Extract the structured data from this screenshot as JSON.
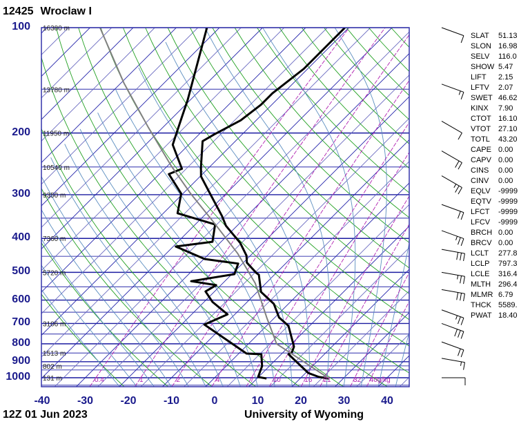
{
  "header": {
    "station_id": "12425",
    "station_name": "Wroclaw I"
  },
  "footer": {
    "time": "12Z 01 Jun 2023",
    "source": "University of Wyoming"
  },
  "chart_data": {
    "type": "line",
    "title": "12425 Wroclaw I",
    "xlabel": "Temperature (°C)",
    "ylabel": "Pressure (hPa)",
    "xlim": [
      -40,
      45
    ],
    "ylim": [
      1060,
      100
    ],
    "x_ticks": [
      "-40",
      "-30",
      "-20",
      "-10",
      "0",
      "10",
      "20",
      "30",
      "40"
    ],
    "y_ticks": [
      "100",
      "200",
      "300",
      "400",
      "500",
      "600",
      "700",
      "800",
      "900",
      "1000"
    ],
    "isobars": [
      100,
      150,
      200,
      250,
      300,
      350,
      400,
      450,
      500,
      550,
      600,
      650,
      700,
      750,
      800,
      850,
      900,
      925,
      950,
      1000,
      1050
    ],
    "height_labels": [
      {
        "p": 100,
        "text": "16380 m"
      },
      {
        "p": 150,
        "text": "13780 m"
      },
      {
        "p": 200,
        "text": "11950 m"
      },
      {
        "p": 250,
        "text": "10540 m"
      },
      {
        "p": 300,
        "text": "9350 m"
      },
      {
        "p": 400,
        "text": "7360 m"
      },
      {
        "p": 500,
        "text": "5720 m"
      },
      {
        "p": 700,
        "text": "3106 m"
      },
      {
        "p": 850,
        "text": "1513 m"
      },
      {
        "p": 925,
        "text": "802 m"
      },
      {
        "p": 1000,
        "text": "131 m"
      }
    ],
    "mixing_ratio_labels": [
      "0.4",
      "1",
      "2",
      "4",
      "7",
      "10",
      "16",
      "21",
      "32",
      "40g/kg"
    ],
    "mixing_ratios": [
      0.4,
      1,
      2,
      4,
      7,
      10,
      16,
      21,
      32,
      40
    ],
    "series": [
      {
        "name": "Temperature",
        "color": "#000000",
        "points": [
          [
            1005,
            26.7
          ],
          [
            995,
            24.0
          ],
          [
            969,
            20.6
          ],
          [
            857,
            11.7
          ],
          [
            845,
            12.0
          ],
          [
            815,
            11.2
          ],
          [
            711,
            5.1
          ],
          [
            673,
            1.0
          ],
          [
            615,
            -3.4
          ],
          [
            569,
            -9.1
          ],
          [
            508,
            -13.6
          ],
          [
            502,
            -14.6
          ],
          [
            469,
            -19.2
          ],
          [
            448,
            -20.9
          ],
          [
            412,
            -25.3
          ],
          [
            368,
            -32.6
          ],
          [
            345,
            -35.8
          ],
          [
            298,
            -43.7
          ],
          [
            266,
            -49.8
          ],
          [
            250,
            -52.0
          ],
          [
            211,
            -57.6
          ],
          [
            202,
            -56.5
          ],
          [
            184,
            -53.6
          ],
          [
            166,
            -52.5
          ],
          [
            154,
            -52.5
          ],
          [
            131,
            -50.9
          ],
          [
            100,
            -50.9
          ]
        ]
      },
      {
        "name": "Dewpoint",
        "color": "#000000",
        "points": [
          [
            1005,
            12.2
          ],
          [
            995,
            9.9
          ],
          [
            960,
            9.1
          ],
          [
            926,
            8.3
          ],
          [
            857,
            5.4
          ],
          [
            853,
            1.8
          ],
          [
            705,
            -14.7
          ],
          [
            659,
            -11.7
          ],
          [
            607,
            -18.1
          ],
          [
            567,
            -22.1
          ],
          [
            544,
            -21.1
          ],
          [
            530,
            -27.8
          ],
          [
            506,
            -19.4
          ],
          [
            472,
            -21.0
          ],
          [
            458,
            -29.8
          ],
          [
            422,
            -39.4
          ],
          [
            409,
            -32.0
          ],
          [
            365,
            -35.4
          ],
          [
            339,
            -46.7
          ],
          [
            298,
            -50.4
          ],
          [
            262,
            -57.8
          ],
          [
            253,
            -56.0
          ],
          [
            216,
            -63.7
          ],
          [
            202,
            -65.3
          ],
          [
            180,
            -68.0
          ],
          [
            161,
            -70.6
          ],
          [
            100,
            -82.9
          ]
        ]
      },
      {
        "name": "Parcel",
        "color": "#808080",
        "points": [
          [
            1005,
            26.7
          ],
          [
            800,
            6.5
          ],
          [
            674,
            -1.8
          ],
          [
            615,
            -6.1
          ],
          [
            537,
            -12.5
          ],
          [
            442,
            -23.4
          ],
          [
            361,
            -36.0
          ],
          [
            298,
            -48.2
          ],
          [
            248,
            -59.2
          ],
          [
            193,
            -73.3
          ],
          [
            144,
            -89.3
          ],
          [
            100,
            -107.7
          ]
        ]
      }
    ],
    "wind_barbs": [
      {
        "p": 100,
        "dir": 290,
        "kt": 10
      },
      {
        "p": 145,
        "dir": 290,
        "kt": 15
      },
      {
        "p": 185,
        "dir": 300,
        "kt": 10
      },
      {
        "p": 225,
        "dir": 300,
        "kt": 20
      },
      {
        "p": 265,
        "dir": 300,
        "kt": 25
      },
      {
        "p": 320,
        "dir": 290,
        "kt": 20
      },
      {
        "p": 380,
        "dir": 290,
        "kt": 25
      },
      {
        "p": 430,
        "dir": 280,
        "kt": 30
      },
      {
        "p": 500,
        "dir": 280,
        "kt": 25
      },
      {
        "p": 560,
        "dir": 280,
        "kt": 30
      },
      {
        "p": 640,
        "dir": 290,
        "kt": 25
      },
      {
        "p": 700,
        "dir": 290,
        "kt": 30
      },
      {
        "p": 790,
        "dir": 290,
        "kt": 20
      },
      {
        "p": 880,
        "dir": 280,
        "kt": 15
      },
      {
        "p": 1000,
        "dir": 270,
        "kt": 10
      }
    ]
  },
  "stats": [
    {
      "k": "SLAT",
      "v": "51.13"
    },
    {
      "k": "SLON",
      "v": "16.98"
    },
    {
      "k": "SELV",
      "v": "116.0"
    },
    {
      "k": "SHOW",
      "v": "5.47"
    },
    {
      "k": "LIFT",
      "v": "2.15"
    },
    {
      "k": "LFTV",
      "v": "2.07"
    },
    {
      "k": "SWET",
      "v": "46.62"
    },
    {
      "k": "KINX",
      "v": "7.90"
    },
    {
      "k": "CTOT",
      "v": "16.10"
    },
    {
      "k": "VTOT",
      "v": "27.10"
    },
    {
      "k": "TOTL",
      "v": "43.20"
    },
    {
      "k": "CAPE",
      "v": "0.00"
    },
    {
      "k": "CAPV",
      "v": "0.00"
    },
    {
      "k": "CINS",
      "v": "0.00"
    },
    {
      "k": "CINV",
      "v": "0.00"
    },
    {
      "k": "EQLV",
      "v": "-9999"
    },
    {
      "k": "EQTV",
      "v": "-9999"
    },
    {
      "k": "LFCT",
      "v": "-9999"
    },
    {
      "k": "LFCV",
      "v": "-9999"
    },
    {
      "k": "BRCH",
      "v": "0.00"
    },
    {
      "k": "BRCV",
      "v": "0.00"
    },
    {
      "k": "LCLT",
      "v": "277.8"
    },
    {
      "k": "LCLP",
      "v": "797.3"
    },
    {
      "k": "LCLE",
      "v": "316.4"
    },
    {
      "k": "MLTH",
      "v": "296.4"
    },
    {
      "k": "MLMR",
      "v": "6.79"
    },
    {
      "k": "THCK",
      "v": "5589."
    },
    {
      "k": "PWAT",
      "v": "18.40"
    }
  ]
}
